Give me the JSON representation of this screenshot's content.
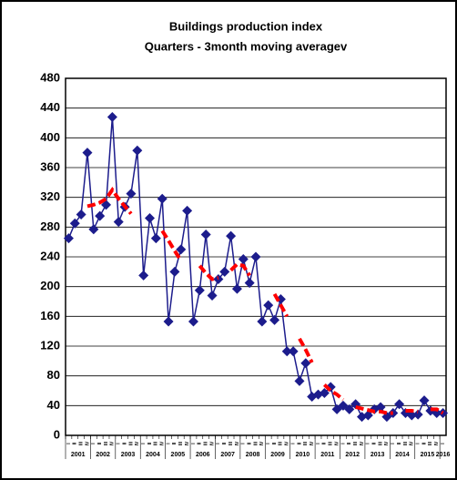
{
  "chart_data": {
    "type": "line",
    "title": "Buildings production index",
    "subtitle": "Quarters - 3month moving averagev",
    "categories": [
      "I",
      "II",
      "III",
      "IV",
      "I",
      "II",
      "III",
      "IV",
      "I",
      "II",
      "III",
      "IV",
      "I",
      "II",
      "III",
      "IV",
      "I",
      "II",
      "III",
      "IV",
      "I",
      "II",
      "III",
      "IV",
      "I",
      "II",
      "III",
      "IV",
      "I",
      "II",
      "III",
      "IV",
      "I",
      "II",
      "III",
      "IV",
      "I",
      "II",
      "III",
      "IV",
      "I",
      "II",
      "III",
      "IV",
      "I",
      "II",
      "III",
      "IV",
      "I",
      "II",
      "III",
      "IV",
      "I",
      "II",
      "III",
      "IV",
      "I",
      "II",
      "III",
      "IV",
      "I"
    ],
    "years": [
      "2001",
      "2002",
      "2003",
      "2004",
      "2005",
      "2006",
      "2007",
      "2008",
      "2009",
      "2010",
      "2011",
      "2012",
      "2013",
      "2014",
      "2015",
      "2016"
    ],
    "series": [
      {
        "name": "Index",
        "color": "#1c1c8c",
        "marker": "diamond",
        "values": [
          265,
          285,
          297,
          380,
          277,
          295,
          310,
          428,
          287,
          307,
          325,
          383,
          215,
          292,
          265,
          318,
          153,
          220,
          250,
          302,
          153,
          195,
          270,
          188,
          210,
          220,
          268,
          197,
          237,
          205,
          240,
          153,
          175,
          155,
          183,
          113,
          113,
          73,
          97,
          52,
          55,
          57,
          65,
          35,
          40,
          35,
          42,
          25,
          27,
          35,
          38,
          25,
          30,
          42,
          30,
          27,
          28,
          47,
          33,
          30,
          30
        ]
      },
      {
        "name": "3month moving average",
        "color": "#ff0000",
        "dashed": true,
        "values": [
          null,
          null,
          null,
          308,
          310,
          313,
          318,
          330,
          318,
          308,
          298,
          null,
          null,
          null,
          null,
          275,
          262,
          248,
          235,
          null,
          null,
          228,
          218,
          210,
          212,
          null,
          222,
          230,
          228,
          215,
          null,
          null,
          null,
          190,
          175,
          160,
          null,
          130,
          115,
          98,
          null,
          68,
          60,
          55,
          48,
          null,
          38,
          36,
          34,
          32,
          32,
          30,
          30,
          null,
          33,
          33,
          32,
          null,
          35,
          35,
          30
        ]
      }
    ],
    "ylim": [
      0,
      480
    ],
    "yticks": [
      0,
      40,
      80,
      120,
      160,
      200,
      240,
      280,
      320,
      360,
      400,
      440,
      480
    ],
    "grid": true
  }
}
